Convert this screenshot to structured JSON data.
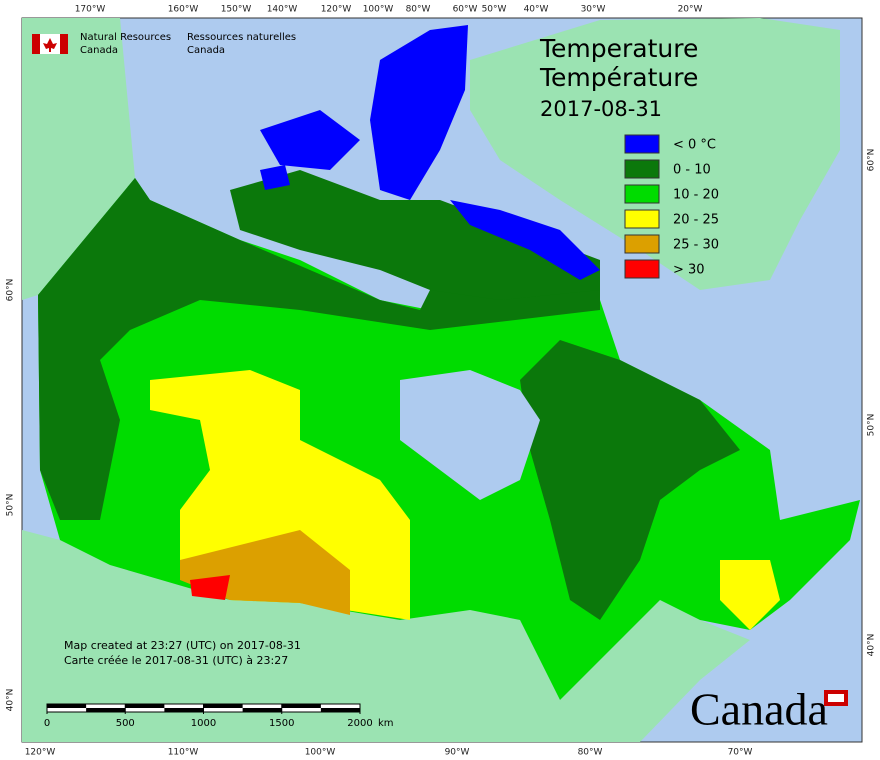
{
  "logo": {
    "en_line1": "Natural Resources",
    "en_line2": "Canada",
    "fr_line1": "Ressources naturelles",
    "fr_line2": "Canada"
  },
  "title": [
    "Temperature",
    "Température",
    "2017-08-31"
  ],
  "legend": [
    {
      "label": "< 0 °C",
      "color": "#0000ff"
    },
    {
      "label": "0 - 10",
      "color": "#0b780b"
    },
    {
      "label": "10 - 20",
      "color": "#00dc00"
    },
    {
      "label": "20 - 25",
      "color": "#ffff00"
    },
    {
      "label": "25 - 30",
      "color": "#dca000"
    },
    {
      "label": "> 30",
      "color": "#ff0000"
    }
  ],
  "graticule": {
    "top": [
      "170°W",
      "160°W",
      "150°W",
      "140°W",
      "120°W",
      "100°W",
      "80°W",
      "60°W",
      "50°W",
      "40°W",
      "30°W",
      "20°W"
    ],
    "bottom": [
      "120°W",
      "110°W",
      "100°W",
      "90°W",
      "80°W",
      "70°W"
    ],
    "left": [
      "60°N",
      "50°N",
      "40°N"
    ],
    "right": [
      "60°N",
      "50°N",
      "40°N"
    ]
  },
  "credits": [
    "Map created at 23:27 (UTC) on 2017-08-31",
    "Carte créée le 2017-08-31 (UTC) à 23:27"
  ],
  "scale_bar": {
    "ticks": [
      0,
      500,
      1000,
      1500,
      2000
    ],
    "unit": "km"
  },
  "wordmark": "Canada"
}
